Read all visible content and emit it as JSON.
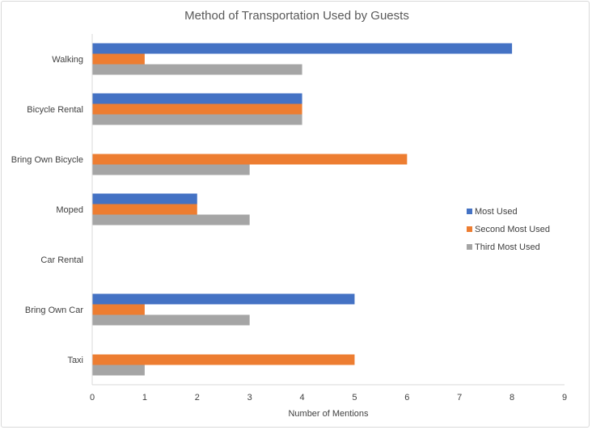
{
  "chart_data": {
    "type": "bar",
    "orientation": "horizontal",
    "title": "Method of Transportation Used by Guests",
    "xlabel": "Number of Mentions",
    "ylabel": "",
    "xlim": [
      0,
      9
    ],
    "x_ticks": [
      0,
      1,
      2,
      3,
      4,
      5,
      6,
      7,
      8,
      9
    ],
    "categories": [
      "Walking",
      "Bicycle Rental",
      "Bring Own Bicycle",
      "Moped",
      "Car Rental",
      "Bring Own Car",
      "Taxi"
    ],
    "series": [
      {
        "name": "Most Used",
        "color": "#4472c4",
        "values": [
          8,
          4,
          0,
          2,
          0,
          5,
          0
        ]
      },
      {
        "name": "Second Most Used",
        "color": "#ed7d31",
        "values": [
          1,
          4,
          6,
          2,
          0,
          1,
          5
        ]
      },
      {
        "name": "Third Most Used",
        "color": "#a5a5a5",
        "values": [
          4,
          4,
          3,
          3,
          0,
          3,
          1
        ]
      }
    ],
    "grid": false,
    "legend_position": "right"
  }
}
